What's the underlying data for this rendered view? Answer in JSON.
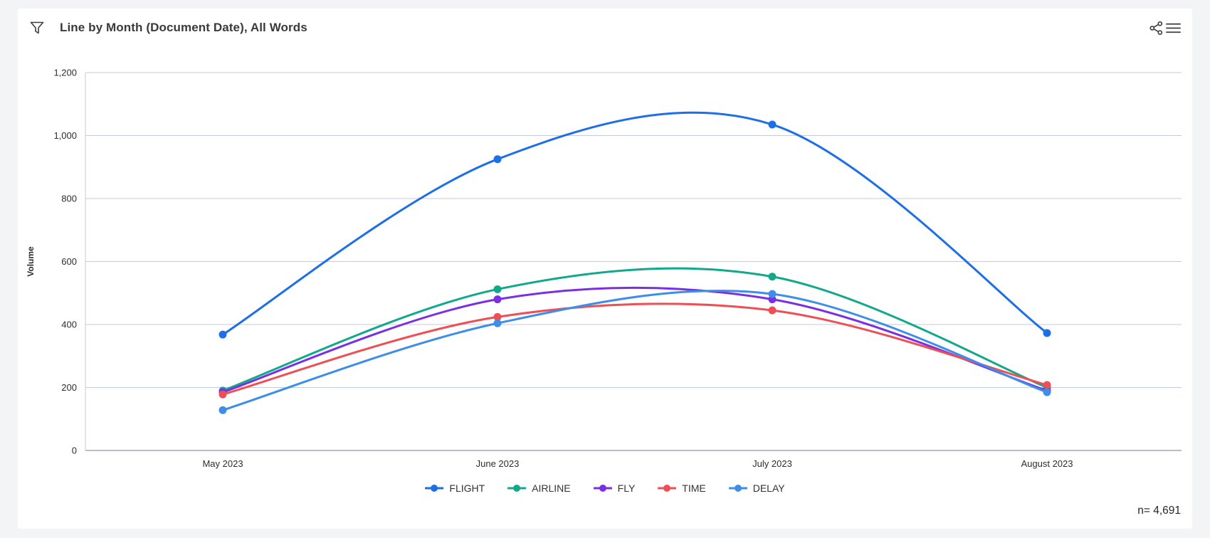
{
  "header": {
    "title": "Line by Month (Document Date), All Words"
  },
  "footer": {
    "n_label": "n= 4,691"
  },
  "chart_data": {
    "type": "line",
    "title": "Line by Month (Document Date), All Words",
    "xlabel": "",
    "ylabel": "Volume",
    "categories": [
      "May 2023",
      "June 2023",
      "July 2023",
      "August 2023"
    ],
    "series": [
      {
        "name": "FLIGHT",
        "color": "#1e6fe6",
        "values": [
          368,
          925,
          1035,
          373
        ]
      },
      {
        "name": "AIRLINE",
        "color": "#12a88c",
        "values": [
          190,
          512,
          552,
          200
        ]
      },
      {
        "name": "FLY",
        "color": "#7b2fe3",
        "values": [
          185,
          480,
          480,
          190
        ]
      },
      {
        "name": "TIME",
        "color": "#ee4f54",
        "values": [
          178,
          424,
          445,
          208
        ]
      },
      {
        "name": "DELAY",
        "color": "#3e8ee8",
        "values": [
          128,
          404,
          497,
          185
        ]
      }
    ],
    "ylim": [
      0,
      1200
    ],
    "ytick_step": 200,
    "ytick_labels": [
      "0",
      "200",
      "400",
      "600",
      "800",
      "1,000",
      "1,200"
    ],
    "grid": "horizontal",
    "legend_position": "bottom",
    "sample_note": "n= 4,691",
    "curve": "smooth"
  },
  "colors": {
    "grid": "#c7cadb",
    "axis": "#a2a7bd",
    "tick_text": "#2d2d2d",
    "page_bg": "#f3f4f6",
    "card_bg": "#ffffff"
  }
}
